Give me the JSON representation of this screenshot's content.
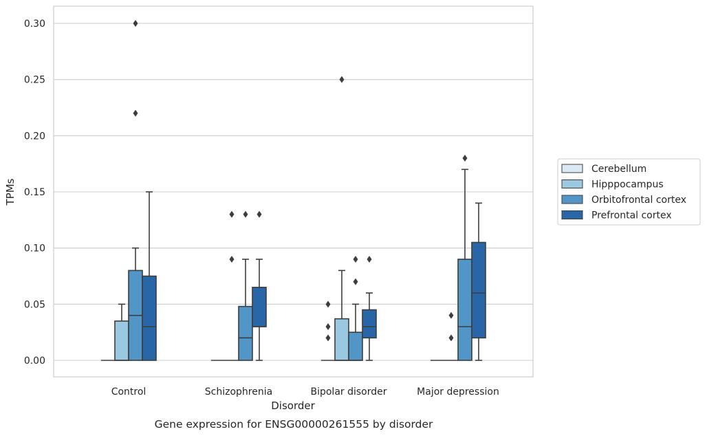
{
  "chart_data": {
    "type": "boxplot",
    "title": "Gene expression for ENSG00000261555 by disorder",
    "xlabel": "Disorder",
    "ylabel": "TPMs",
    "ylim": [
      -0.015,
      0.315
    ],
    "yticks": [
      0.0,
      0.05,
      0.1,
      0.15,
      0.2,
      0.25,
      0.3
    ],
    "ytick_labels": [
      "0.00",
      "0.05",
      "0.10",
      "0.15",
      "0.20",
      "0.25",
      "0.30"
    ],
    "grid": true,
    "legend_position": "right",
    "categories": [
      "Control",
      "Schizophrenia",
      "Bipolar disorder",
      "Major depression"
    ],
    "series": [
      {
        "name": "Cerebellum",
        "color": "#dbe9f6",
        "boxes": [
          {
            "q1": 0,
            "median": 0,
            "q3": 0,
            "whislo": 0,
            "whishi": 0,
            "fliers": []
          },
          {
            "q1": 0,
            "median": 0,
            "q3": 0,
            "whislo": 0,
            "whishi": 0,
            "fliers": []
          },
          {
            "q1": 0,
            "median": 0,
            "q3": 0,
            "whislo": 0,
            "whishi": 0,
            "fliers": []
          },
          {
            "q1": 0,
            "median": 0,
            "q3": 0,
            "whislo": 0,
            "whishi": 0,
            "fliers": []
          }
        ]
      },
      {
        "name": "Hipppocampus",
        "color": "#9ac8e0",
        "boxes": [
          {
            "q1": 0,
            "median": 0,
            "q3": 0.035,
            "whislo": 0,
            "whishi": 0.05,
            "fliers": []
          },
          {
            "q1": 0,
            "median": 0,
            "q3": 0,
            "whislo": 0,
            "whishi": 0,
            "fliers": []
          },
          {
            "q1": 0,
            "median": 0,
            "q3": 0.037,
            "whislo": 0,
            "whishi": 0.08,
            "fliers": []
          },
          {
            "q1": 0,
            "median": 0,
            "q3": 0,
            "whislo": 0,
            "whishi": 0,
            "fliers": [
              0.02
            ]
          }
        ]
      },
      {
        "name": "Orbitofrontal cortex",
        "color": "#5196c6",
        "boxes": [
          {
            "q1": 0,
            "median": 0.04,
            "q3": 0.08,
            "whislo": 0,
            "whishi": 0.1,
            "fliers": [
              0.22,
              0.3
            ]
          },
          {
            "q1": 0,
            "median": 0.02,
            "q3": 0.048,
            "whislo": 0,
            "whishi": 0.09,
            "fliers": [
              0.13
            ]
          },
          {
            "q1": 0,
            "median": 0,
            "q3": 0.025,
            "whislo": 0,
            "whishi": 0.05,
            "fliers": [
              0.07,
              0.09
            ]
          },
          {
            "q1": 0,
            "median": 0.03,
            "q3": 0.09,
            "whislo": 0,
            "whishi": 0.17,
            "fliers": [
              0.18
            ]
          }
        ]
      },
      {
        "name": "Prefrontal cortex",
        "color": "#2866a7",
        "boxes": [
          {
            "q1": 0,
            "median": 0.03,
            "q3": 0.075,
            "whislo": 0,
            "whishi": 0.15,
            "fliers": []
          },
          {
            "q1": 0.03,
            "median": 0.03,
            "q3": 0.065,
            "whislo": 0,
            "whishi": 0.09,
            "fliers": [
              0.13
            ]
          },
          {
            "q1": 0.02,
            "median": 0.03,
            "q3": 0.045,
            "whislo": 0,
            "whishi": 0.06,
            "fliers": [
              0.09
            ]
          },
          {
            "q1": 0.02,
            "median": 0.06,
            "q3": 0.105,
            "whislo": 0,
            "whishi": 0.14,
            "fliers": []
          }
        ]
      }
    ],
    "extra_fliers": [
      {
        "category": 0,
        "series": 0,
        "values": []
      },
      {
        "category": 0,
        "series": 1,
        "values": []
      },
      {
        "category": 0,
        "series": 0,
        "values": []
      },
      {
        "category": 0,
        "series": 0,
        "values": []
      }
    ],
    "extra_fliers_hipppocampus_bipolar": [
      0.02,
      0.03,
      0.05
    ],
    "extra_fliers_bipolar_orbitofrontal_high": [
      0.25
    ],
    "extra_fliers_schizophrenia_hipppocampus": [
      0.09,
      0.13
    ],
    "extra_fliers_major_depression_orbitofrontal": [
      0.04
    ]
  }
}
